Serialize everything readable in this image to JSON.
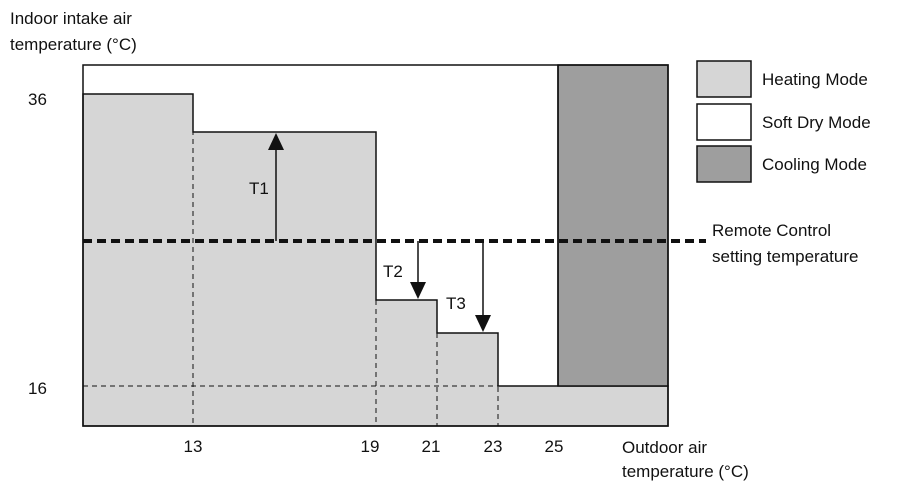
{
  "y_axis": {
    "title_line1": "Indoor intake air",
    "title_line2": "temperature (°C)",
    "ticks": [
      "36",
      "16"
    ]
  },
  "x_axis": {
    "title_line1": "Outdoor air",
    "title_line2": "temperature (°C)",
    "ticks": [
      "13",
      "19",
      "21",
      "23",
      "25"
    ]
  },
  "legend": [
    {
      "label": "Heating Mode",
      "color": "#d6d6d6"
    },
    {
      "label": "Soft Dry Mode",
      "color": "#ffffff"
    },
    {
      "label": "Cooling Mode",
      "color": "#9e9e9e"
    }
  ],
  "setting_line": {
    "label_line1": "Remote Control",
    "label_line2": "setting temperature"
  },
  "annotations": {
    "t1": "T1",
    "t2": "T2",
    "t3": "T3"
  }
}
